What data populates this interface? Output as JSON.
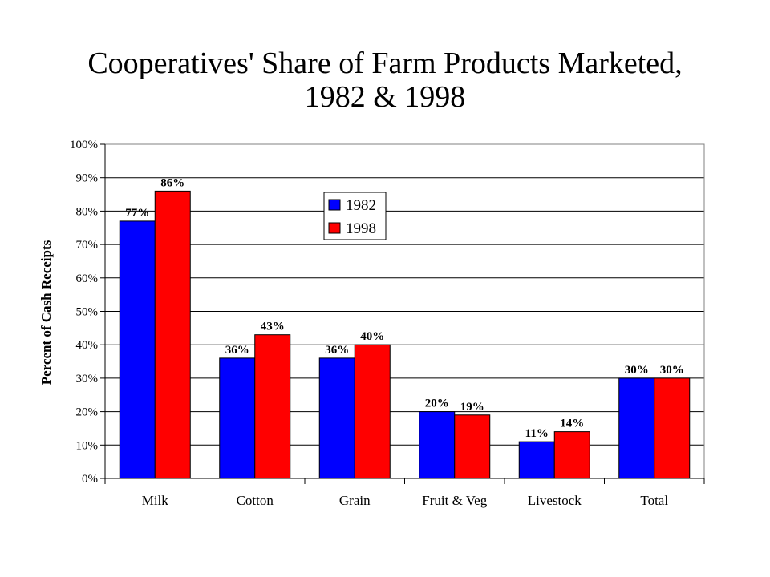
{
  "chart_data": {
    "type": "bar",
    "title": "Cooperatives' Share of Farm Products Marketed,",
    "title_line2": "1982 & 1998",
    "ylabel": "Percent of Cash Receipts",
    "xlabel": "",
    "ylim": [
      0,
      100
    ],
    "yticks": [
      "0%",
      "10%",
      "20%",
      "30%",
      "40%",
      "50%",
      "60%",
      "70%",
      "80%",
      "90%",
      "100%"
    ],
    "categories": [
      "Milk",
      "Cotton",
      "Grain",
      "Fruit & Veg",
      "Livestock",
      "Total"
    ],
    "series": [
      {
        "name": "1982",
        "color": "#0000ff",
        "values": [
          77,
          36,
          36,
          20,
          11,
          30
        ],
        "labels": [
          "77%",
          "36%",
          "36%",
          "20%",
          "11%",
          "30%"
        ]
      },
      {
        "name": "1998",
        "color": "#ff0000",
        "values": [
          86,
          43,
          40,
          19,
          14,
          30
        ],
        "labels": [
          "86%",
          "43%",
          "40%",
          "19%",
          "14%",
          "30%"
        ]
      }
    ],
    "grid": true,
    "legend_position": "top-center"
  }
}
